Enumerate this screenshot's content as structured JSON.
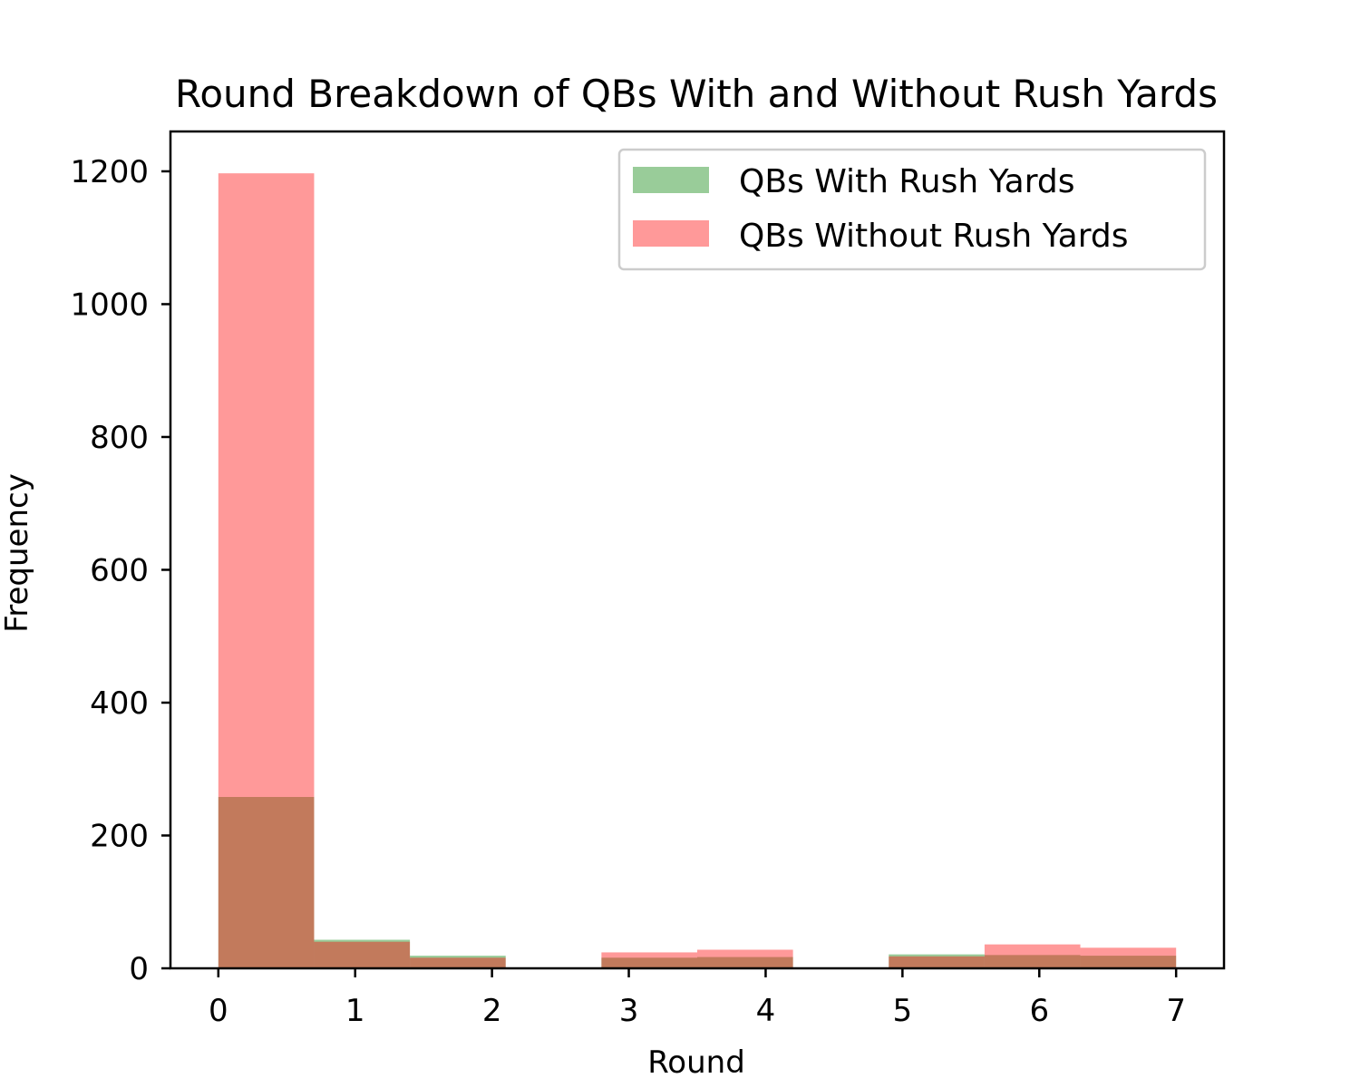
{
  "chart_data": {
    "type": "bar",
    "title": "Round Breakdown of QBs With and Without Rush Yards",
    "xlabel": "Round",
    "ylabel": "Frequency",
    "xlim": [
      -0.35,
      7.35
    ],
    "ylim": [
      0,
      1260
    ],
    "x_ticks": [
      0,
      1,
      2,
      3,
      4,
      5,
      6,
      7
    ],
    "y_ticks": [
      0,
      200,
      400,
      600,
      800,
      1000,
      1200
    ],
    "bin_edges": [
      0,
      0.7,
      1.4,
      2.1,
      2.8,
      3.5,
      4.2,
      4.9,
      5.6,
      6.3,
      7.0
    ],
    "legend_position": "upper right",
    "grid": false,
    "series": [
      {
        "name": "QBs With Rush Yards",
        "color": "#008000",
        "opacity": 0.4,
        "values": [
          258,
          43,
          19,
          0,
          16,
          17,
          0,
          21,
          20,
          19
        ]
      },
      {
        "name": "QBs Without Rush Yards",
        "color": "#ff0000",
        "opacity": 0.4,
        "values": [
          1197,
          40,
          16,
          0,
          24,
          28,
          0,
          18,
          36,
          31
        ]
      }
    ]
  }
}
